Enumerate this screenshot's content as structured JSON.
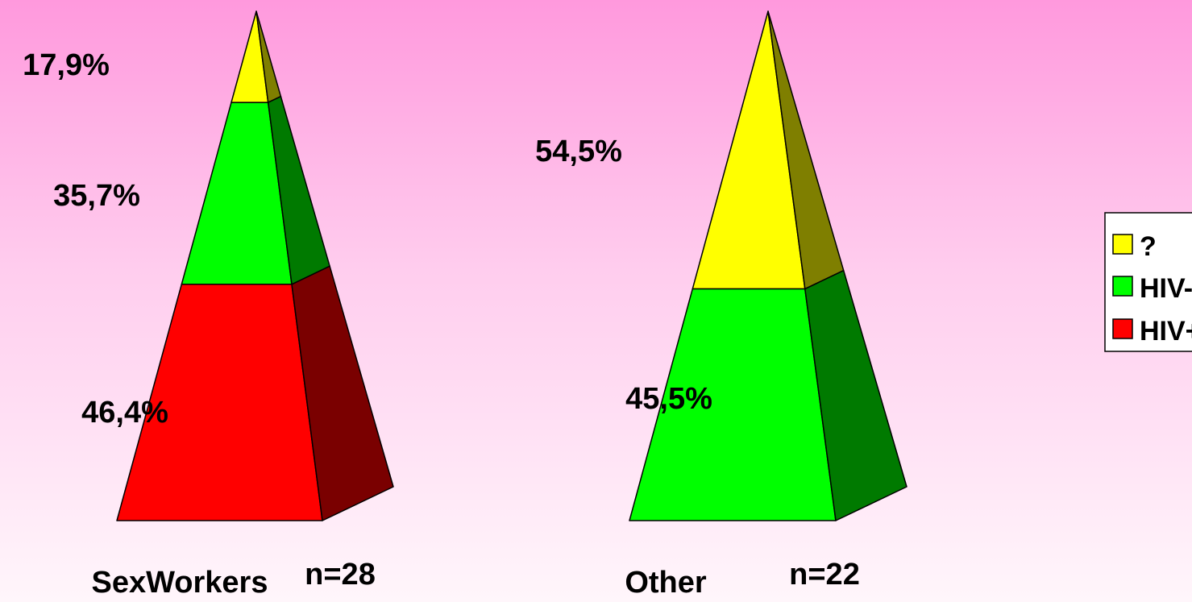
{
  "chart_data": {
    "type": "pyramid",
    "categories": [
      {
        "label": "SexWorkers",
        "n_label": "n=28"
      },
      {
        "label": "Other",
        "n_label": "n=22"
      }
    ],
    "series": [
      {
        "name": "HIV+",
        "color": "#ff0000",
        "side_color": "#7a0000",
        "values": [
          46.4,
          0.0
        ],
        "labels": [
          "46,4%",
          ""
        ]
      },
      {
        "name": "HIV-",
        "color": "#00ff00",
        "side_color": "#007a00",
        "values": [
          35.7,
          45.5
        ],
        "labels": [
          "35,7%",
          "45,5%"
        ]
      },
      {
        "name": "?",
        "color": "#ffff00",
        "side_color": "#7f7f00",
        "values": [
          17.9,
          54.5
        ],
        "labels": [
          "17,9%",
          "54,5%"
        ]
      }
    ],
    "legend_order": [
      "?",
      "HIV-",
      "HIV+"
    ],
    "legend_position": "right"
  }
}
